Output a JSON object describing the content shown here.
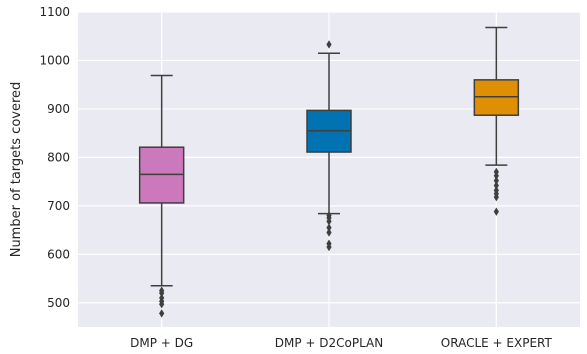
{
  "chart_data": {
    "type": "box",
    "title": "",
    "xlabel": "",
    "ylabel": "Number of targets covered",
    "ylim": [
      450,
      1100
    ],
    "yticks": [
      500,
      600,
      700,
      800,
      900,
      1000,
      1100
    ],
    "grid": true,
    "categories": [
      "DMP + DG",
      "DMP + D2CoPLAN",
      "ORACLE + EXPERT"
    ],
    "boxes": [
      {
        "category": "DMP + DG",
        "color": "#cc78bc",
        "whisker_low": 535,
        "q1": 706,
        "median": 765,
        "q3": 821,
        "whisker_high": 969,
        "outliers": [
          525,
          520,
          510,
          503,
          497,
          478
        ]
      },
      {
        "category": "DMP + D2CoPLAN",
        "color": "#0173b2",
        "whisker_low": 684,
        "q1": 811,
        "median": 855,
        "q3": 897,
        "whisker_high": 1015,
        "outliers": [
          1033,
          680,
          675,
          668,
          655,
          645,
          622,
          615
        ]
      },
      {
        "category": "ORACLE + EXPERT",
        "color": "#de8f05",
        "whisker_low": 784,
        "q1": 887,
        "median": 925,
        "q3": 960,
        "whisker_high": 1068,
        "outliers": [
          770,
          762,
          752,
          742,
          732,
          725,
          718,
          688
        ]
      }
    ]
  }
}
